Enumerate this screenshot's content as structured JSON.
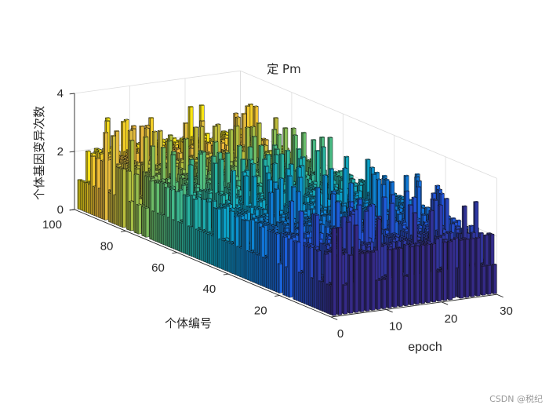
{
  "chart_data": {
    "type": "bar3",
    "title": "定 Pm",
    "xlabel": "epoch",
    "ylabel": "个体编号",
    "zlabel": "个体基因变异次数",
    "xlim": [
      0,
      30
    ],
    "ylim": [
      0,
      100
    ],
    "zlim": [
      0,
      4
    ],
    "xticks": [
      "0",
      "10",
      "20",
      "30"
    ],
    "yticks": [
      "20",
      "40",
      "60",
      "80",
      "100"
    ],
    "zticks": [
      "0",
      "2",
      "4"
    ],
    "colormap": "parula",
    "grid": true,
    "x_note": "epochs 1-30",
    "y_note": "individuals 1-100",
    "z_note": "per-individual mutation counts; sampled representative values, most bars 0-2, max 3",
    "seed": 7
  },
  "watermark": "CSDN @税纪"
}
